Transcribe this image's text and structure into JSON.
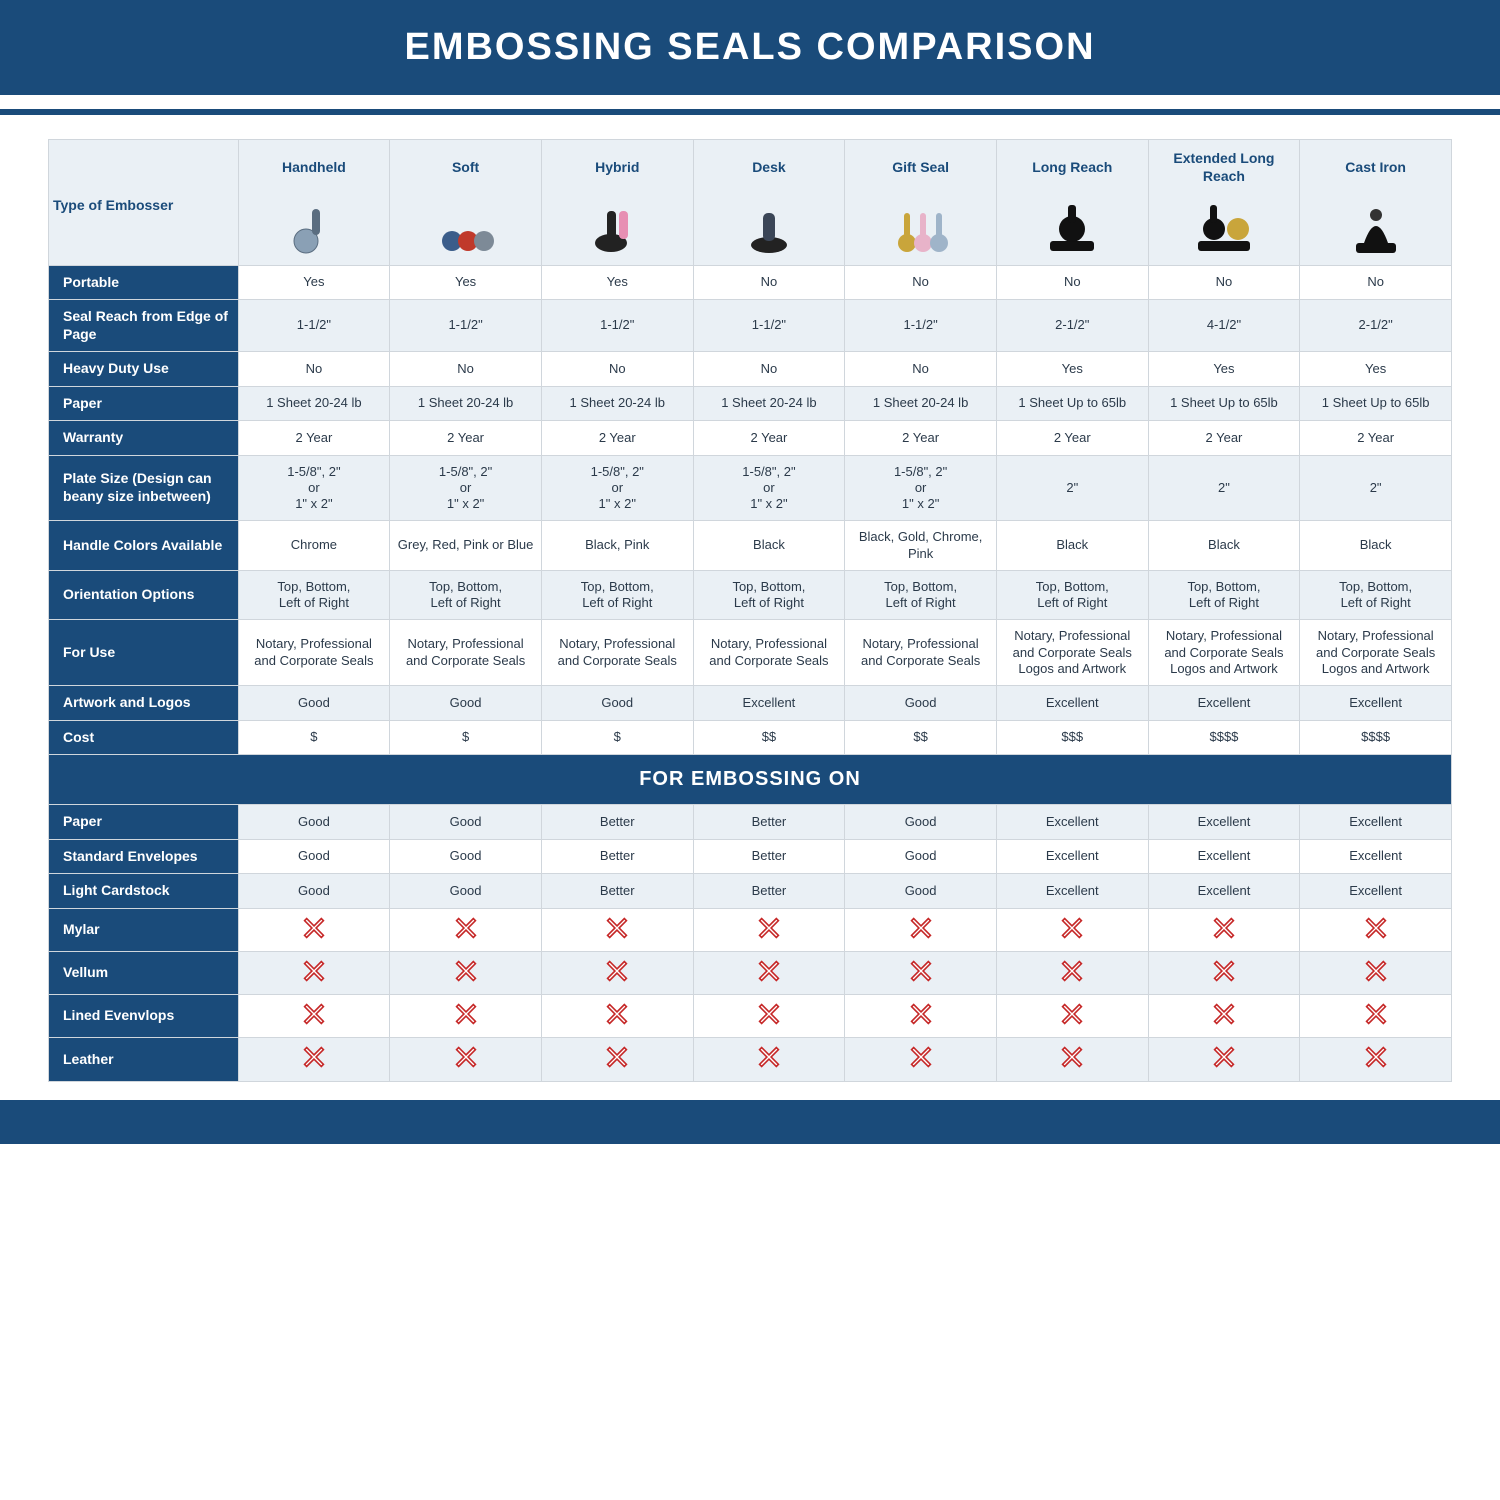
{
  "title": "EMBOSSING SEALS COMPARISON",
  "type": "comparison-table",
  "colors": {
    "brand": "#1a4b7a",
    "row_alt_bg": "#eaf0f5",
    "row_bg": "#ffffff",
    "border": "#d0d6dc",
    "text": "#2b3a4a",
    "no_icon": "#c62828"
  },
  "columns": [
    "Handheld",
    "Soft",
    "Hybrid",
    "Desk",
    "Gift Seal",
    "Long Reach",
    "Extended Long Reach",
    "Cast Iron"
  ],
  "type_label": "Type of Embosser",
  "product_icons": [
    "handheld-embosser",
    "soft-embosser",
    "hybrid-embosser",
    "desk-embosser",
    "gift-seal-embosser",
    "long-reach-embosser",
    "extended-long-reach-embosser",
    "cast-iron-embosser"
  ],
  "rows": [
    {
      "label": "Portable",
      "alt": false,
      "cells": [
        "Yes",
        "Yes",
        "Yes",
        "No",
        "No",
        "No",
        "No",
        "No"
      ]
    },
    {
      "label": "Seal Reach from Edge of Page",
      "alt": true,
      "cells": [
        "1-1/2\"",
        "1-1/2\"",
        "1-1/2\"",
        "1-1/2\"",
        "1-1/2\"",
        "2-1/2\"",
        "4-1/2\"",
        "2-1/2\""
      ]
    },
    {
      "label": "Heavy Duty Use",
      "alt": false,
      "cells": [
        "No",
        "No",
        "No",
        "No",
        "No",
        "Yes",
        "Yes",
        "Yes"
      ]
    },
    {
      "label": "Paper",
      "alt": true,
      "cells": [
        "1 Sheet 20-24 lb",
        "1 Sheet 20-24 lb",
        "1 Sheet 20-24 lb",
        "1 Sheet 20-24 lb",
        "1 Sheet 20-24 lb",
        "1 Sheet Up to 65lb",
        "1 Sheet Up to 65lb",
        "1 Sheet Up to 65lb"
      ]
    },
    {
      "label": "Warranty",
      "alt": false,
      "cells": [
        "2 Year",
        "2 Year",
        "2 Year",
        "2 Year",
        "2 Year",
        "2 Year",
        "2 Year",
        "2 Year"
      ]
    },
    {
      "label": "Plate Size (Design can beany size inbetween)",
      "alt": true,
      "cells": [
        "1-5/8\", 2\"\nor\n1\" x 2\"",
        "1-5/8\", 2\"\nor\n1\" x 2\"",
        "1-5/8\", 2\"\nor\n1\" x 2\"",
        "1-5/8\", 2\"\nor\n1\" x 2\"",
        "1-5/8\", 2\"\nor\n1\" x 2\"",
        "2\"",
        "2\"",
        "2\""
      ]
    },
    {
      "label": "Handle Colors Available",
      "alt": false,
      "cells": [
        "Chrome",
        "Grey, Red, Pink or Blue",
        "Black, Pink",
        "Black",
        "Black, Gold, Chrome, Pink",
        "Black",
        "Black",
        "Black"
      ]
    },
    {
      "label": "Orientation Options",
      "alt": true,
      "cells": [
        "Top, Bottom,\nLeft of Right",
        "Top, Bottom,\nLeft of Right",
        "Top, Bottom,\nLeft of Right",
        "Top, Bottom,\nLeft of Right",
        "Top, Bottom,\nLeft of Right",
        "Top, Bottom,\nLeft of Right",
        "Top, Bottom,\nLeft of Right",
        "Top, Bottom,\nLeft of Right"
      ]
    },
    {
      "label": "For Use",
      "alt": false,
      "cells": [
        "Notary, Professional and Corporate Seals",
        "Notary, Professional and Corporate Seals",
        "Notary, Professional and Corporate Seals",
        "Notary, Professional and Corporate Seals",
        "Notary, Professional and Corporate Seals",
        "Notary, Professional and Corporate Seals Logos and Artwork",
        "Notary, Professional and Corporate Seals Logos and Artwork",
        "Notary, Professional and Corporate Seals Logos and Artwork"
      ]
    },
    {
      "label": "Artwork and Logos",
      "alt": true,
      "cells": [
        "Good",
        "Good",
        "Good",
        "Excellent",
        "Good",
        "Excellent",
        "Excellent",
        "Excellent"
      ]
    },
    {
      "label": "Cost",
      "alt": false,
      "cells": [
        "$",
        "$",
        "$",
        "$$",
        "$$",
        "$$$",
        "$$$$",
        "$$$$"
      ]
    }
  ],
  "section_label": "FOR EMBOSSING ON",
  "embossing_rows": [
    {
      "label": "Paper",
      "alt": true,
      "cells": [
        "Good",
        "Good",
        "Better",
        "Better",
        "Good",
        "Excellent",
        "Excellent",
        "Excellent"
      ]
    },
    {
      "label": "Standard Envelopes",
      "alt": false,
      "cells": [
        "Good",
        "Good",
        "Better",
        "Better",
        "Good",
        "Excellent",
        "Excellent",
        "Excellent"
      ]
    },
    {
      "label": "Light Cardstock",
      "alt": true,
      "cells": [
        "Good",
        "Good",
        "Better",
        "Better",
        "Good",
        "Excellent",
        "Excellent",
        "Excellent"
      ]
    },
    {
      "label": "Mylar",
      "alt": false,
      "cells": [
        "X",
        "X",
        "X",
        "X",
        "X",
        "X",
        "X",
        "X"
      ]
    },
    {
      "label": "Vellum",
      "alt": true,
      "cells": [
        "X",
        "X",
        "X",
        "X",
        "X",
        "X",
        "X",
        "X"
      ]
    },
    {
      "label": "Lined Evenvlops",
      "alt": false,
      "cells": [
        "X",
        "X",
        "X",
        "X",
        "X",
        "X",
        "X",
        "X"
      ]
    },
    {
      "label": "Leather",
      "alt": true,
      "cells": [
        "X",
        "X",
        "X",
        "X",
        "X",
        "X",
        "X",
        "X"
      ]
    }
  ]
}
